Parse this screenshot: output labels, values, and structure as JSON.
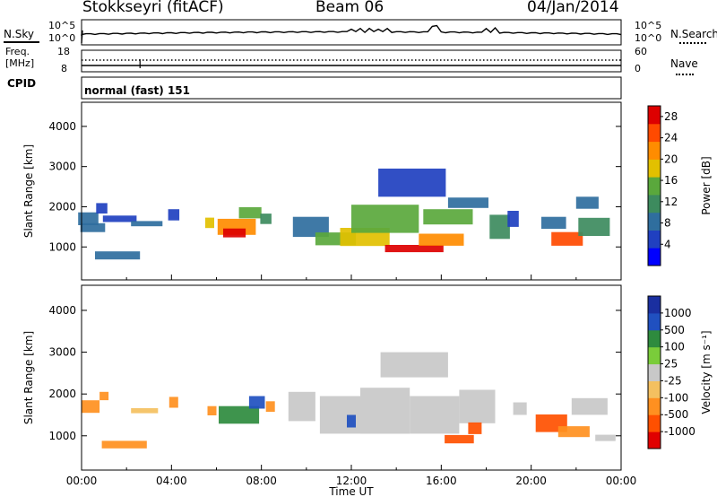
{
  "header": {
    "station": "Stokkseyri (fitACF)",
    "beam": "Beam 06",
    "date": "04/Jan/2014"
  },
  "noise_panel": {
    "left_label": "N.Sky",
    "right_label": "N.Search",
    "left_ticks": [
      "10^5",
      "10^0"
    ],
    "right_ticks": [
      "10^5",
      "10^0"
    ]
  },
  "freq_panel": {
    "left_label_1": "Freq.",
    "left_label_2": "[MHz]",
    "right_label": "Nave",
    "left_ticks": [
      "18",
      "8"
    ],
    "right_ticks": [
      "60",
      "0"
    ]
  },
  "cpid_panel": {
    "label": "CPID",
    "value": "normal (fast) 151"
  },
  "colors": {
    "power": [
      "#0000ff",
      "#2040c0",
      "#2f6e9e",
      "#3d8b5e",
      "#5aa83c",
      "#e2c000",
      "#ff8c00",
      "#ff4a00",
      "#dd0000"
    ],
    "velocity": [
      "#e00000",
      "#ff5000",
      "#ff9020",
      "#f4c060",
      "#c8c8c8",
      "#7acc3a",
      "#2e8b3e",
      "#2050c0",
      "#1a2fa0"
    ]
  },
  "chart_data": [
    {
      "type": "heatmap",
      "title": "Power",
      "ylabel": "Slant Range [km]",
      "ylim": [
        180,
        4600
      ],
      "yticks": [
        "4000",
        "3000",
        "2000",
        "1000"
      ],
      "colorbar": {
        "label": "Power [dB]",
        "ticks": [
          "28",
          "24",
          "20",
          "16",
          "12",
          "8",
          "4"
        ],
        "range": [
          0,
          30
        ]
      },
      "cells": [
        {
          "t": 0.3,
          "r": 1700,
          "dt": 0.9,
          "dr": 320,
          "v": 7
        },
        {
          "t": 0.5,
          "r": 1480,
          "dt": 1.1,
          "dr": 220,
          "v": 9
        },
        {
          "t": 0.9,
          "r": 1960,
          "dt": 0.5,
          "dr": 260,
          "v": 6
        },
        {
          "t": 1.6,
          "r": 790,
          "dt": 2.0,
          "dr": 200,
          "v": 9
        },
        {
          "t": 1.7,
          "r": 1700,
          "dt": 1.5,
          "dr": 160,
          "v": 5
        },
        {
          "t": 2.9,
          "r": 1580,
          "dt": 1.4,
          "dr": 130,
          "v": 8
        },
        {
          "t": 4.1,
          "r": 1800,
          "dt": 0.5,
          "dr": 280,
          "v": 5
        },
        {
          "t": 5.7,
          "r": 1600,
          "dt": 0.4,
          "dr": 260,
          "v": 18
        },
        {
          "t": 6.9,
          "r": 1500,
          "dt": 1.7,
          "dr": 400,
          "v": 22
        },
        {
          "t": 6.8,
          "r": 1350,
          "dt": 1.0,
          "dr": 220,
          "v": 27
        },
        {
          "t": 7.5,
          "r": 1850,
          "dt": 1.0,
          "dr": 280,
          "v": 14
        },
        {
          "t": 8.2,
          "r": 1700,
          "dt": 0.5,
          "dr": 260,
          "v": 11
        },
        {
          "t": 10.2,
          "r": 1500,
          "dt": 1.6,
          "dr": 500,
          "v": 9
        },
        {
          "t": 11.3,
          "r": 1200,
          "dt": 1.8,
          "dr": 320,
          "v": 15
        },
        {
          "t": 12.6,
          "r": 1250,
          "dt": 2.2,
          "dr": 450,
          "v": 19
        },
        {
          "t": 13.5,
          "r": 1700,
          "dt": 3.0,
          "dr": 700,
          "v": 14
        },
        {
          "t": 14.8,
          "r": 960,
          "dt": 2.6,
          "dr": 180,
          "v": 27
        },
        {
          "t": 16.0,
          "r": 1180,
          "dt": 2.0,
          "dr": 300,
          "v": 23
        },
        {
          "t": 16.3,
          "r": 1750,
          "dt": 2.2,
          "dr": 380,
          "v": 16
        },
        {
          "t": 17.2,
          "r": 2100,
          "dt": 1.8,
          "dr": 260,
          "v": 9
        },
        {
          "t": 14.7,
          "r": 2600,
          "dt": 3.0,
          "dr": 700,
          "v": 6
        },
        {
          "t": 18.6,
          "r": 1500,
          "dt": 0.9,
          "dr": 600,
          "v": 12
        },
        {
          "t": 19.2,
          "r": 1700,
          "dt": 0.5,
          "dr": 400,
          "v": 5
        },
        {
          "t": 21.0,
          "r": 1600,
          "dt": 1.1,
          "dr": 300,
          "v": 9
        },
        {
          "t": 21.6,
          "r": 1200,
          "dt": 1.4,
          "dr": 340,
          "v": 24
        },
        {
          "t": 22.8,
          "r": 1500,
          "dt": 1.4,
          "dr": 450,
          "v": 13
        },
        {
          "t": 22.5,
          "r": 2100,
          "dt": 1.0,
          "dr": 300,
          "v": 7
        }
      ]
    },
    {
      "type": "heatmap",
      "title": "Velocity",
      "xlabel": "Time UT",
      "ylabel": "Slant Range [km]",
      "ylim": [
        180,
        4600
      ],
      "yticks": [
        "4000",
        "3000",
        "2000",
        "1000"
      ],
      "xticks": [
        "00:00",
        "04:00",
        "08:00",
        "12:00",
        "16:00",
        "20:00",
        "00:00"
      ],
      "colorbar": {
        "label": "Velocity [m s⁻¹]",
        "ticks": [
          "1000",
          "500",
          "100",
          "25",
          "-25",
          "-100",
          "-500",
          "-1000"
        ]
      },
      "cells": [
        {
          "t": 0.4,
          "r": 1700,
          "dt": 0.8,
          "dr": 300,
          "v": -200
        },
        {
          "t": 1.0,
          "r": 1950,
          "dt": 0.4,
          "dr": 200,
          "v": -300
        },
        {
          "t": 1.9,
          "r": 790,
          "dt": 2.0,
          "dr": 180,
          "v": -400
        },
        {
          "t": 2.8,
          "r": 1600,
          "dt": 1.2,
          "dr": 120,
          "v": -80
        },
        {
          "t": 4.1,
          "r": 1800,
          "dt": 0.4,
          "dr": 260,
          "v": -120
        },
        {
          "t": 5.8,
          "r": 1600,
          "dt": 0.4,
          "dr": 220,
          "v": -300
        },
        {
          "t": 7.0,
          "r": 1500,
          "dt": 1.8,
          "dr": 420,
          "v": 150
        },
        {
          "t": 7.8,
          "r": 1800,
          "dt": 0.7,
          "dr": 300,
          "v": 600
        },
        {
          "t": 8.4,
          "r": 1700,
          "dt": 0.4,
          "dr": 250,
          "v": -100
        },
        {
          "t": 9.8,
          "r": 1700,
          "dt": 1.2,
          "dr": 700,
          "v": 0
        },
        {
          "t": 11.5,
          "r": 1500,
          "dt": 1.8,
          "dr": 900,
          "v": 0
        },
        {
          "t": 13.5,
          "r": 1600,
          "dt": 2.2,
          "dr": 1100,
          "v": 0
        },
        {
          "t": 15.7,
          "r": 1500,
          "dt": 2.2,
          "dr": 900,
          "v": 0
        },
        {
          "t": 17.6,
          "r": 1700,
          "dt": 1.6,
          "dr": 800,
          "v": 0
        },
        {
          "t": 14.8,
          "r": 2700,
          "dt": 3.0,
          "dr": 600,
          "v": 0
        },
        {
          "t": 12.0,
          "r": 1350,
          "dt": 0.4,
          "dr": 300,
          "v": 700
        },
        {
          "t": 16.8,
          "r": 920,
          "dt": 1.3,
          "dr": 200,
          "v": -500
        },
        {
          "t": 17.5,
          "r": 1180,
          "dt": 0.6,
          "dr": 280,
          "v": -700
        },
        {
          "t": 20.9,
          "r": 1300,
          "dt": 1.4,
          "dr": 420,
          "v": -800
        },
        {
          "t": 21.9,
          "r": 1100,
          "dt": 1.4,
          "dr": 260,
          "v": -400
        },
        {
          "t": 22.6,
          "r": 1700,
          "dt": 1.6,
          "dr": 400,
          "v": 0
        },
        {
          "t": 23.3,
          "r": 950,
          "dt": 0.9,
          "dr": 150,
          "v": 0
        },
        {
          "t": 19.5,
          "r": 1650,
          "dt": 0.6,
          "dr": 300,
          "v": 0
        }
      ]
    }
  ]
}
